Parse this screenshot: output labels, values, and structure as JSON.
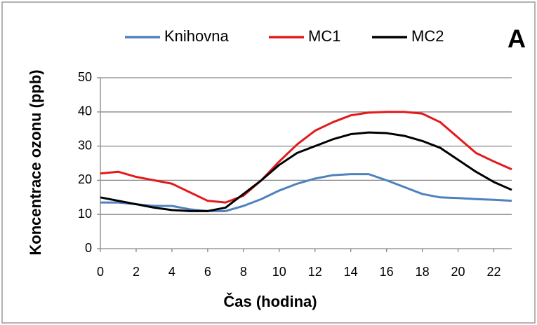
{
  "chart_data": {
    "type": "line",
    "annotation": "A",
    "xlabel": "Čas (hodina)",
    "ylabel": "Koncentrace ozonu (ppb)",
    "x": [
      0,
      1,
      2,
      3,
      4,
      5,
      6,
      7,
      8,
      9,
      10,
      11,
      12,
      13,
      14,
      15,
      16,
      17,
      18,
      19,
      20,
      21,
      22,
      23
    ],
    "series": [
      {
        "name": "Knihovna",
        "color": "#4f81bd",
        "values": [
          13.5,
          13.5,
          13,
          12.5,
          12.5,
          11.5,
          11,
          11,
          12.5,
          14.5,
          17,
          19,
          20.5,
          21.5,
          21.8,
          21.8,
          20,
          18,
          16,
          15,
          14.8,
          14.5,
          14.3,
          14
        ]
      },
      {
        "name": "MC1",
        "color": "#e31a1c",
        "values": [
          22,
          22.5,
          21,
          20,
          19,
          16.5,
          14,
          13.5,
          15.5,
          20,
          25.5,
          30.5,
          34.5,
          37,
          39,
          39.8,
          40,
          40,
          39.5,
          37,
          32.5,
          28,
          25.5,
          23.2
        ]
      },
      {
        "name": "MC2",
        "color": "#000000",
        "values": [
          15,
          14,
          13,
          12,
          11.3,
          11,
          11,
          12,
          16,
          20,
          24.5,
          28,
          30,
          32,
          33.5,
          34,
          33.8,
          33,
          31.5,
          29.5,
          26,
          22.5,
          19.5,
          17.2
        ]
      }
    ],
    "xlim": [
      0,
      23
    ],
    "xticks": [
      0,
      2,
      4,
      6,
      8,
      10,
      12,
      14,
      16,
      18,
      20,
      22
    ],
    "ylim": [
      0,
      50
    ],
    "yticks": [
      0,
      10,
      20,
      30,
      40,
      50
    ],
    "grid": true,
    "legend": "top"
  }
}
